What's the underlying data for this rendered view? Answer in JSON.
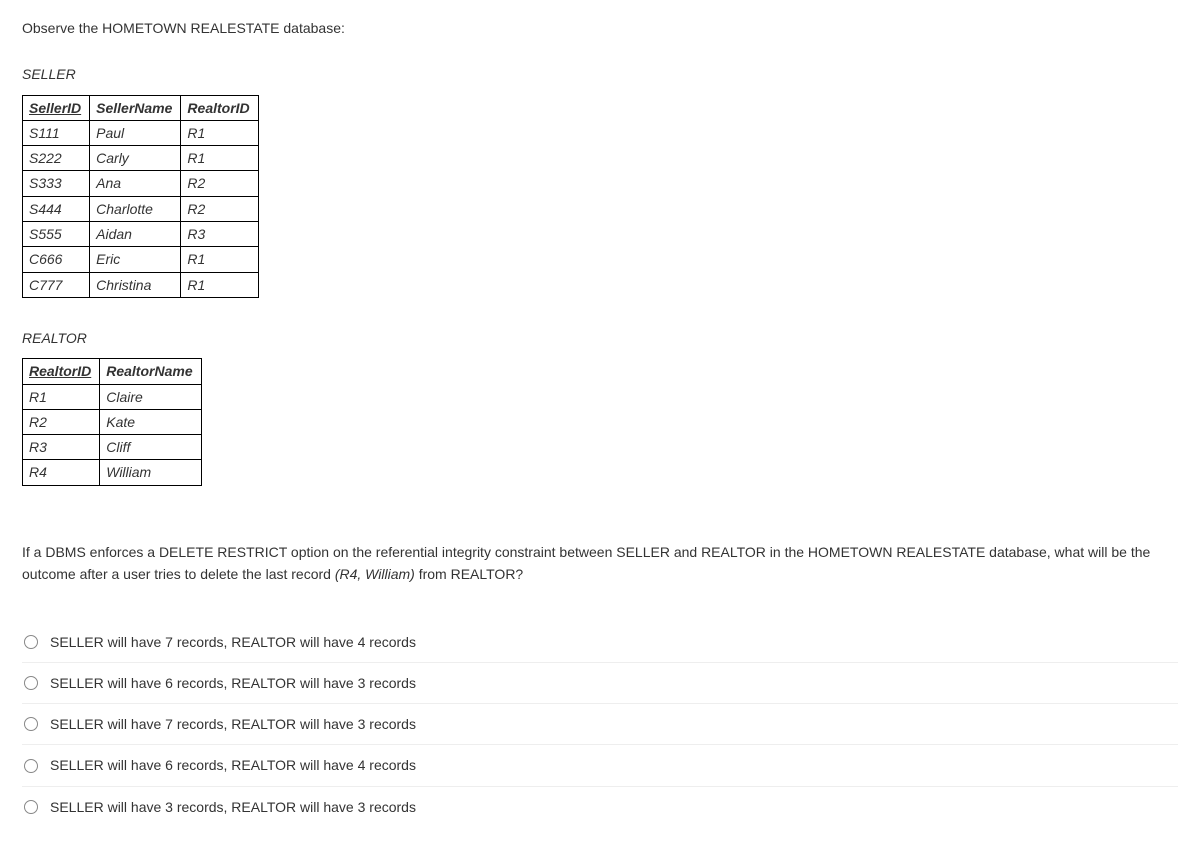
{
  "intro": "Observe the HOMETOWN REALESTATE database:",
  "seller": {
    "name": "SELLER",
    "columns": [
      "SellerID",
      "SellerName",
      "RealtorID"
    ],
    "pk_col_index": 0,
    "rows": [
      [
        "S111",
        "Paul",
        "R1"
      ],
      [
        "S222",
        "Carly",
        "R1"
      ],
      [
        "S333",
        "Ana",
        "R2"
      ],
      [
        "S444",
        "Charlotte",
        "R2"
      ],
      [
        "S555",
        "Aidan",
        "R3"
      ],
      [
        "C666",
        "Eric",
        "R1"
      ],
      [
        "C777",
        "Christina",
        "R1"
      ]
    ]
  },
  "realtor": {
    "name": "REALTOR",
    "columns": [
      "RealtorID",
      "RealtorName"
    ],
    "pk_col_index": 0,
    "rows": [
      [
        "R1",
        "Claire"
      ],
      [
        "R2",
        "Kate"
      ],
      [
        "R3",
        "Cliff"
      ],
      [
        "R4",
        "William"
      ]
    ]
  },
  "question_part1": "If a DBMS enforces a DELETE RESTRICT option on the referential integrity constraint between SELLER and REALTOR in the HOMETOWN REALESTATE database, what will be the outcome after a user tries to delete the last record ",
  "question_italic": "(R4, William)",
  "question_part2": " from REALTOR?",
  "options": [
    "SELLER will have 7 records, REALTOR will have 4 records",
    "SELLER will have 6 records, REALTOR will have 3 records",
    "SELLER will have 7 records, REALTOR will have 3 records",
    "SELLER will have 6 records, REALTOR will have 4 records",
    "SELLER will have 3 records, REALTOR will have 3 records"
  ]
}
